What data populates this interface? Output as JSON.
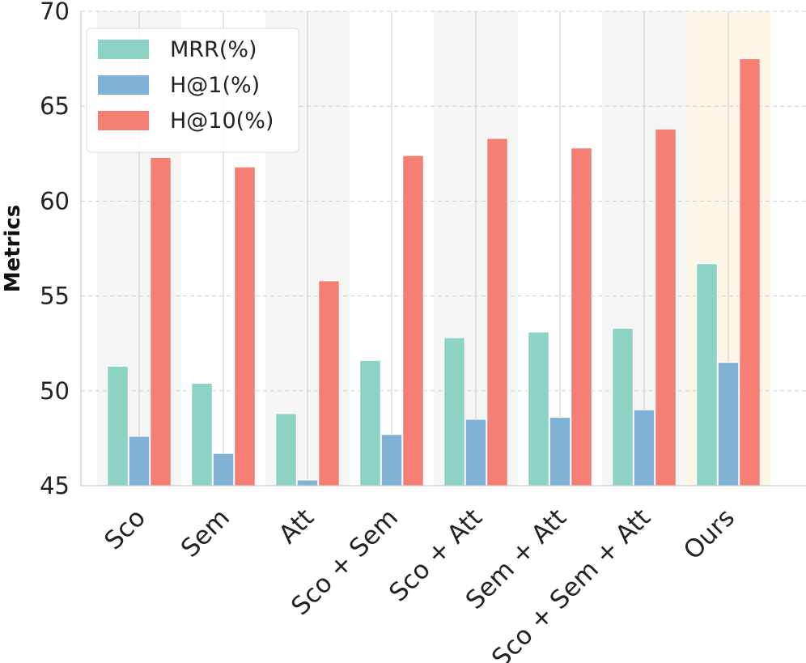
{
  "chart_data": {
    "type": "bar",
    "title": "",
    "xlabel": "",
    "ylabel": "Metrics",
    "ylim": [
      45,
      70
    ],
    "yticks": [
      45,
      50,
      55,
      60,
      65,
      70
    ],
    "grid": true,
    "legend_position": "top-left",
    "categories": [
      "Sco",
      "Sem",
      "Att",
      "Sco + Sem",
      "Sco + Att",
      "Sem + Att",
      "Sco + Sem + Att",
      "Ours"
    ],
    "highlight_category": "Ours",
    "highlight_color": "#e8453c",
    "series": [
      {
        "name": "MRR(%)",
        "color": "#8dd3c3",
        "values": [
          51.3,
          50.4,
          48.8,
          51.6,
          52.8,
          53.1,
          53.3,
          56.7
        ]
      },
      {
        "name": "H@1(%)",
        "color": "#80b1d6",
        "values": [
          47.6,
          46.7,
          45.3,
          47.7,
          48.5,
          48.6,
          49.0,
          51.5
        ]
      },
      {
        "name": "H@10(%)",
        "color": "#f47f72",
        "values": [
          62.3,
          61.8,
          55.8,
          62.4,
          63.3,
          62.8,
          63.8,
          67.5
        ]
      }
    ],
    "band_colors": [
      "#f5f5f5",
      "#ffffff",
      "#f5f5f5",
      "#ffffff",
      "#f5f5f5",
      "#ffffff",
      "#f5f5f5",
      "#fdf5e6"
    ]
  }
}
